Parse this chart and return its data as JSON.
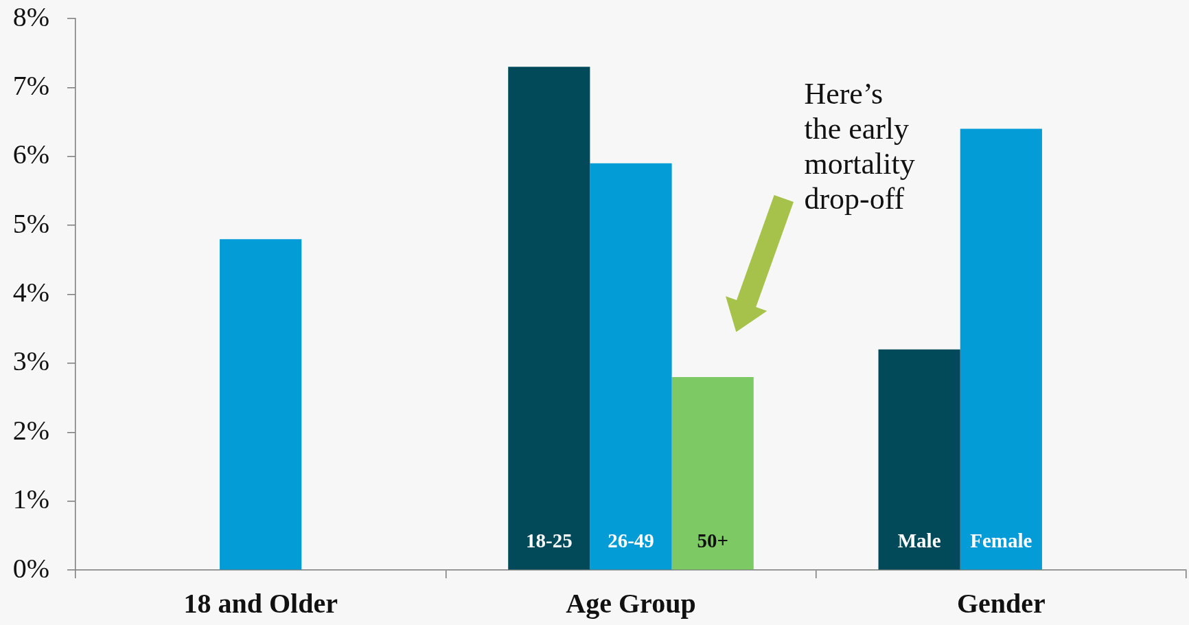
{
  "chart_data": {
    "type": "bar",
    "categories": [
      "18 and Older",
      "Age Group",
      "Gender"
    ],
    "series": [
      {
        "color": "#02495a",
        "values": [
          null,
          7.3,
          3.2
        ],
        "value_labels": [
          null,
          "18-25",
          "Male"
        ]
      },
      {
        "color": "#039cd7",
        "values": [
          4.8,
          5.9,
          6.4
        ],
        "value_labels": [
          null,
          "26-49",
          "Female"
        ]
      },
      {
        "color": "#7dca64",
        "values": [
          null,
          2.8,
          null
        ],
        "value_labels": [
          null,
          "50+",
          null
        ]
      }
    ],
    "ylim": [
      0,
      8
    ],
    "yticks": [
      {
        "value": 0,
        "label": "0%"
      },
      {
        "value": 1,
        "label": "1%"
      },
      {
        "value": 2,
        "label": "2%"
      },
      {
        "value": 3,
        "label": "3%"
      },
      {
        "value": 4,
        "label": "4%"
      },
      {
        "value": 5,
        "label": "5%"
      },
      {
        "value": 6,
        "label": "6%"
      },
      {
        "value": 7,
        "label": "7%"
      },
      {
        "value": 8,
        "label": "8%"
      }
    ],
    "annotations": [
      "Here’s\nthe early\nmortality\ndrop-off"
    ]
  }
}
